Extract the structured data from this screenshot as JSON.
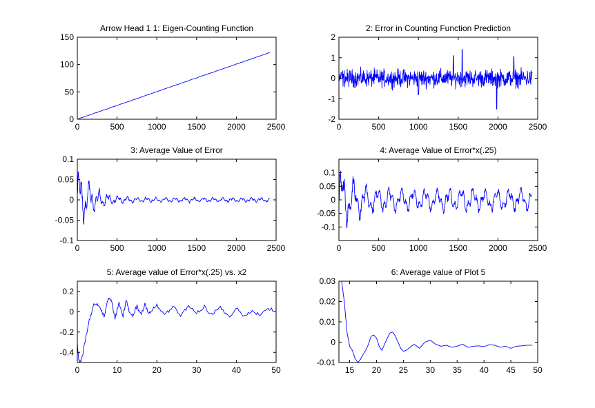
{
  "colors": {
    "line": "#0000ff",
    "axes": "#000000",
    "background": "#ffffff"
  },
  "chart_data": [
    {
      "type": "line",
      "title": "Arrow Head 1 1: Eigen-Counting Function",
      "xlim": [
        0,
        2500
      ],
      "ylim": [
        0,
        150
      ],
      "xticks": [
        0,
        500,
        1000,
        1500,
        2000,
        2500
      ],
      "yticks": [
        0,
        50,
        100,
        150
      ],
      "grid": false,
      "series": [
        {
          "kind": "ramp",
          "x_range": [
            0,
            2420
          ],
          "y_range": [
            0,
            122
          ],
          "noise": 0
        }
      ]
    },
    {
      "type": "line",
      "title": "2: Error in Counting Function Prediction",
      "xlim": [
        0,
        2500
      ],
      "ylim": [
        -2,
        2
      ],
      "xticks": [
        0,
        500,
        1000,
        1500,
        2000,
        2500
      ],
      "yticks": [
        -2,
        -1,
        0,
        1,
        2
      ],
      "grid": false,
      "series": [
        {
          "kind": "noise",
          "x_range": [
            0,
            2430
          ],
          "center": 0,
          "amplitude": 0.45,
          "extremes": [
            [
              1550,
              1.4
            ],
            [
              1985,
              -1.5
            ],
            [
              1440,
              1.1
            ],
            [
              2200,
              1.05
            ],
            [
              1000,
              -0.8
            ]
          ]
        }
      ]
    },
    {
      "type": "line",
      "title": "3: Average Value of Error",
      "xlim": [
        0,
        2500
      ],
      "ylim": [
        -0.1,
        0.1
      ],
      "xticks": [
        0,
        500,
        1000,
        1500,
        2000,
        2500
      ],
      "yticks": [
        -0.1,
        -0.05,
        0,
        0.05,
        0.1
      ],
      "grid": false,
      "series": [
        {
          "kind": "decay",
          "x_range": [
            0,
            2420
          ],
          "start_amp": 0.1,
          "end_amp": 0.006,
          "period": 120
        }
      ]
    },
    {
      "type": "line",
      "title": "4: Average Value of Error*x(.25)",
      "xlim": [
        0,
        2500
      ],
      "ylim": [
        -0.15,
        0.15
      ],
      "xticks": [
        0,
        500,
        1000,
        1500,
        2000,
        2500
      ],
      "yticks": [
        -0.1,
        -0.05,
        0,
        0.05,
        0.1
      ],
      "grid": false,
      "series": [
        {
          "kind": "decay",
          "x_range": [
            0,
            2420
          ],
          "start_amp": 0.15,
          "end_amp": 0.045,
          "period": 150
        }
      ]
    },
    {
      "type": "line",
      "title": "5: Average value of Error*x(.25) vs. x2",
      "xlim": [
        0,
        50
      ],
      "ylim": [
        -0.5,
        0.3
      ],
      "xticks": [
        0,
        10,
        20,
        30,
        40,
        50
      ],
      "yticks": [
        -0.4,
        -0.2,
        0,
        0.2
      ],
      "grid": false,
      "series": [
        {
          "kind": "points",
          "x": [
            0,
            0.3,
            0.6,
            1,
            2,
            3,
            4,
            5,
            6,
            6.8,
            7.5,
            8,
            8.6,
            9.5,
            10.5,
            11.5,
            12.3,
            13,
            14,
            15,
            16,
            17,
            18,
            19,
            20,
            22,
            24,
            26,
            28,
            30,
            32,
            34,
            36,
            38,
            40,
            42,
            44,
            46,
            48,
            49.3
          ],
          "y": [
            -0.3,
            -0.45,
            -0.5,
            -0.48,
            -0.28,
            -0.08,
            0.05,
            0.08,
            0.02,
            -0.05,
            0.1,
            0.14,
            0.1,
            -0.07,
            0.08,
            -0.05,
            0.12,
            0.0,
            -0.04,
            0.06,
            -0.03,
            0.08,
            -0.02,
            0.02,
            0.06,
            -0.03,
            0.05,
            -0.04,
            0.06,
            -0.02,
            0.04,
            -0.03,
            0.05,
            -0.05,
            0.03,
            -0.04,
            0.02,
            -0.03,
            0.04,
            0.0
          ],
          "jitter": 0.03
        }
      ]
    },
    {
      "type": "line",
      "title": "6: Average value of Plot 5",
      "xlim": [
        13,
        50
      ],
      "ylim": [
        -0.01,
        0.03
      ],
      "xticks": [
        15,
        20,
        25,
        30,
        35,
        40,
        45,
        50
      ],
      "yticks": [
        -0.01,
        0,
        0.01,
        0.02,
        0.03
      ],
      "grid": false,
      "series": [
        {
          "kind": "points",
          "x": [
            13,
            13.5,
            14,
            14.5,
            15,
            15.5,
            16,
            16.5,
            17,
            17.5,
            18,
            18.5,
            19,
            19.5,
            20,
            20.5,
            21,
            21.5,
            22,
            22.5,
            23,
            23.5,
            24,
            24.5,
            25,
            25.5,
            26,
            27,
            28,
            29,
            30,
            31,
            32,
            33,
            34,
            35,
            36,
            37,
            38,
            39,
            40,
            41,
            42,
            43,
            44,
            45,
            46,
            47,
            48,
            49
          ],
          "y": [
            0.03,
            0.03,
            0.02,
            0.005,
            -0.002,
            -0.004,
            -0.008,
            -0.01,
            -0.0085,
            -0.006,
            -0.004,
            -0.001,
            0.003,
            0.0035,
            0.002,
            -0.002,
            -0.004,
            -0.001,
            0.002,
            0.0045,
            0.005,
            0.003,
            0.0,
            -0.003,
            -0.0045,
            -0.004,
            -0.003,
            -0.001,
            -0.003,
            0.0,
            0.001,
            -0.001,
            -0.002,
            -0.0015,
            -0.0025,
            -0.002,
            -0.001,
            -0.0025,
            -0.002,
            -0.0018,
            -0.0022,
            -0.0012,
            -0.0015,
            -0.0025,
            -0.002,
            -0.003,
            -0.002,
            -0.0018,
            -0.0015,
            -0.0015
          ],
          "jitter": 0
        }
      ]
    }
  ]
}
